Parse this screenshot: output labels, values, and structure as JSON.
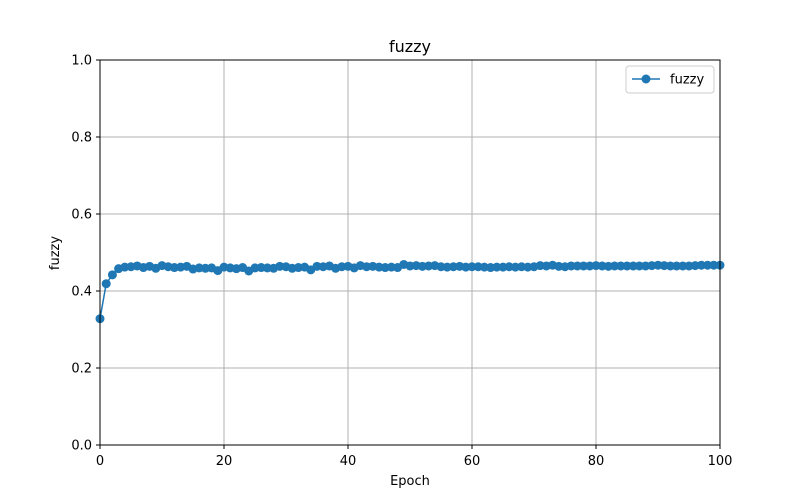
{
  "chart_data": {
    "type": "line",
    "title": "fuzzy",
    "xlabel": "Epoch",
    "ylabel": "fuzzy",
    "xlim": [
      0,
      100
    ],
    "ylim": [
      0.0,
      1.0
    ],
    "xticks": [
      "0",
      "20",
      "40",
      "60",
      "80",
      "100"
    ],
    "yticks": [
      "0.0",
      "0.2",
      "0.4",
      "0.6",
      "0.8",
      "1.0"
    ],
    "grid": true,
    "legend_position": "top-right",
    "series": [
      {
        "name": "fuzzy",
        "color": "#1f77b4",
        "marker": "circle",
        "x": [
          0,
          1,
          2,
          3,
          4,
          5,
          6,
          7,
          8,
          9,
          10,
          11,
          12,
          13,
          14,
          15,
          16,
          17,
          18,
          19,
          20,
          21,
          22,
          23,
          24,
          25,
          26,
          27,
          28,
          29,
          30,
          31,
          32,
          33,
          34,
          35,
          36,
          37,
          38,
          39,
          40,
          41,
          42,
          43,
          44,
          45,
          46,
          47,
          48,
          49,
          50,
          51,
          52,
          53,
          54,
          55,
          56,
          57,
          58,
          59,
          60,
          61,
          62,
          63,
          64,
          65,
          66,
          67,
          68,
          69,
          70,
          71,
          72,
          73,
          74,
          75,
          76,
          77,
          78,
          79,
          80,
          81,
          82,
          83,
          84,
          85,
          86,
          87,
          88,
          89,
          90,
          91,
          92,
          93,
          94,
          95,
          96,
          97,
          98,
          99,
          100
        ],
        "values": [
          0.328,
          0.419,
          0.442,
          0.458,
          0.462,
          0.463,
          0.465,
          0.461,
          0.464,
          0.459,
          0.466,
          0.463,
          0.461,
          0.462,
          0.464,
          0.457,
          0.46,
          0.459,
          0.46,
          0.453,
          0.462,
          0.46,
          0.458,
          0.461,
          0.452,
          0.46,
          0.461,
          0.46,
          0.459,
          0.464,
          0.463,
          0.459,
          0.461,
          0.462,
          0.455,
          0.464,
          0.463,
          0.465,
          0.459,
          0.463,
          0.464,
          0.46,
          0.466,
          0.463,
          0.464,
          0.462,
          0.461,
          0.462,
          0.461,
          0.469,
          0.465,
          0.466,
          0.464,
          0.465,
          0.466,
          0.463,
          0.462,
          0.463,
          0.464,
          0.462,
          0.463,
          0.463,
          0.462,
          0.461,
          0.462,
          0.462,
          0.463,
          0.462,
          0.463,
          0.462,
          0.463,
          0.466,
          0.465,
          0.467,
          0.464,
          0.463,
          0.465,
          0.465,
          0.465,
          0.465,
          0.466,
          0.465,
          0.464,
          0.465,
          0.465,
          0.465,
          0.465,
          0.465,
          0.465,
          0.466,
          0.467,
          0.466,
          0.465,
          0.465,
          0.465,
          0.465,
          0.466,
          0.467,
          0.467,
          0.467,
          0.467
        ]
      }
    ]
  }
}
